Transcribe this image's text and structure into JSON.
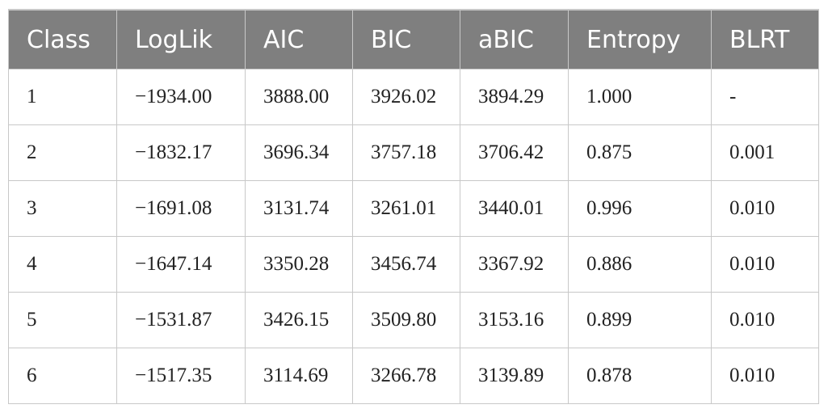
{
  "table": {
    "headers": [
      "Class",
      "LogLik",
      "AIC",
      "BIC",
      "aBIC",
      "Entropy",
      "BLRT"
    ],
    "rows": [
      [
        "1",
        "−1934.00",
        "3888.00",
        "3926.02",
        "3894.29",
        "1.000",
        "-"
      ],
      [
        "2",
        "−1832.17",
        "3696.34",
        "3757.18",
        "3706.42",
        "0.875",
        "0.001"
      ],
      [
        "3",
        "−1691.08",
        "3131.74",
        "3261.01",
        "3440.01",
        "0.996",
        "0.010"
      ],
      [
        "4",
        "−1647.14",
        "3350.28",
        "3456.74",
        "3367.92",
        "0.886",
        "0.010"
      ],
      [
        "5",
        "−1531.87",
        "3426.15",
        "3509.80",
        "3153.16",
        "0.899",
        "0.010"
      ],
      [
        "6",
        "−1517.35",
        "3114.69",
        "3266.78",
        "3139.89",
        "0.878",
        "0.010"
      ]
    ]
  },
  "colors": {
    "header_bg": "#7f7f7f",
    "header_text": "#ffffff",
    "border": "#c8c8c8"
  }
}
